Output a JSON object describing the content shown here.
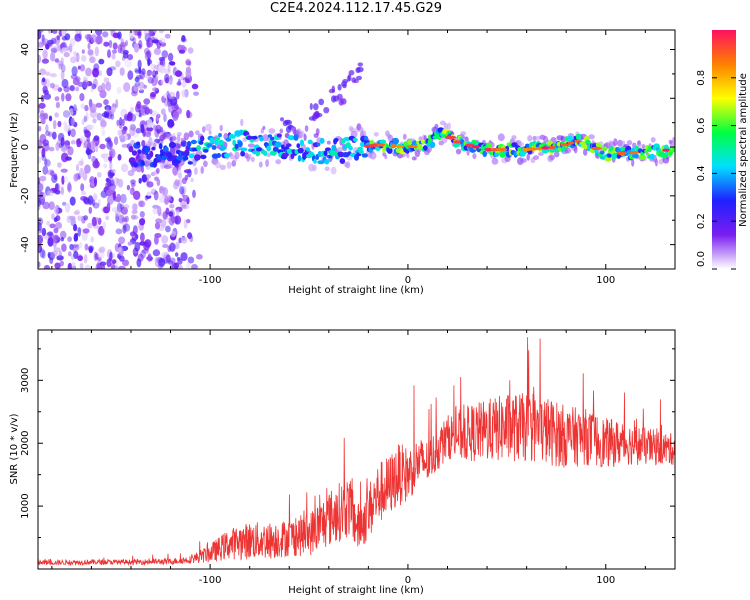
{
  "title": "C2E4.2024.112.17.45.G29",
  "colors": {
    "snr_line": "#ee3333",
    "spectrum_low": "#7a1ef0",
    "spectrum_high": "#ff1060"
  },
  "chart_data": [
    {
      "id": "spectrogram",
      "type": "heatmap",
      "xlabel": "Height of straight line (km)",
      "ylabel": "Frequency (Hz)",
      "xlim": [
        -187,
        135
      ],
      "ylim": [
        -50,
        48
      ],
      "xticks": [
        -100,
        0,
        100
      ],
      "yticks": [
        -40,
        -20,
        0,
        20,
        40
      ],
      "colorbar": {
        "label": "Normalized spectral amplitude",
        "range": [
          0,
          1
        ],
        "ticks": [
          "0.0",
          "0.2",
          "0.4",
          "0.6",
          "0.8"
        ],
        "colormap": [
          "#ffffff",
          "#7a1ef0",
          "#2020ff",
          "#00e0ff",
          "#00ff40",
          "#ffff00",
          "#ff8000",
          "#ff1060"
        ]
      },
      "ridge": [
        {
          "x": -135,
          "y": -3
        },
        {
          "x": -115,
          "y": -3
        },
        {
          "x": -100,
          "y": 0
        },
        {
          "x": -80,
          "y": 2
        },
        {
          "x": -60,
          "y": 0
        },
        {
          "x": -45,
          "y": -2
        },
        {
          "x": -30,
          "y": -1
        },
        {
          "x": -15,
          "y": 1
        },
        {
          "x": 0,
          "y": 0
        },
        {
          "x": 10,
          "y": 1
        },
        {
          "x": 18,
          "y": 6
        },
        {
          "x": 25,
          "y": 2
        },
        {
          "x": 40,
          "y": -1
        },
        {
          "x": 60,
          "y": -1
        },
        {
          "x": 75,
          "y": 0
        },
        {
          "x": 88,
          "y": 3
        },
        {
          "x": 100,
          "y": -3
        },
        {
          "x": 120,
          "y": -2
        },
        {
          "x": 135,
          "y": -1
        }
      ],
      "noise_region": {
        "x": [
          -187,
          -105
        ],
        "y": [
          -50,
          48
        ]
      },
      "plume": [
        {
          "x": -60,
          "y": 8
        },
        {
          "x": -45,
          "y": 15
        },
        {
          "x": -35,
          "y": 22
        },
        {
          "x": -28,
          "y": 30
        }
      ]
    },
    {
      "id": "snr",
      "type": "line",
      "xlabel": "Height of straight line (km)",
      "ylabel": "SNR (10 * v/v)",
      "xlim": [
        -187,
        135
      ],
      "ylim": [
        0,
        3800
      ],
      "xticks": [
        -100,
        0,
        100
      ],
      "yticks": [
        1000,
        2000,
        3000
      ],
      "series": [
        {
          "x": [
            -187,
            -160,
            -140,
            -120,
            -110,
            -100,
            -90,
            -80,
            -70,
            -60,
            -50,
            -40,
            -30,
            -25,
            -20,
            -15,
            -10,
            -5,
            0,
            5,
            10,
            20,
            30,
            40,
            50,
            60,
            70,
            80,
            90,
            100,
            110,
            120,
            135
          ],
          "y": [
            100,
            110,
            110,
            120,
            150,
            250,
            400,
            450,
            450,
            500,
            550,
            800,
            1000,
            650,
            900,
            1200,
            1300,
            1500,
            1500,
            1700,
            1700,
            2100,
            2150,
            2200,
            2250,
            2250,
            2200,
            2100,
            2100,
            2000,
            2000,
            1950,
            1900
          ],
          "noise": [
            40,
            40,
            40,
            50,
            60,
            150,
            250,
            300,
            300,
            300,
            350,
            450,
            500,
            400,
            450,
            500,
            500,
            500,
            450,
            400,
            350,
            350,
            450,
            500,
            550,
            550,
            550,
            500,
            450,
            400,
            350,
            300,
            250
          ]
        }
      ]
    }
  ]
}
